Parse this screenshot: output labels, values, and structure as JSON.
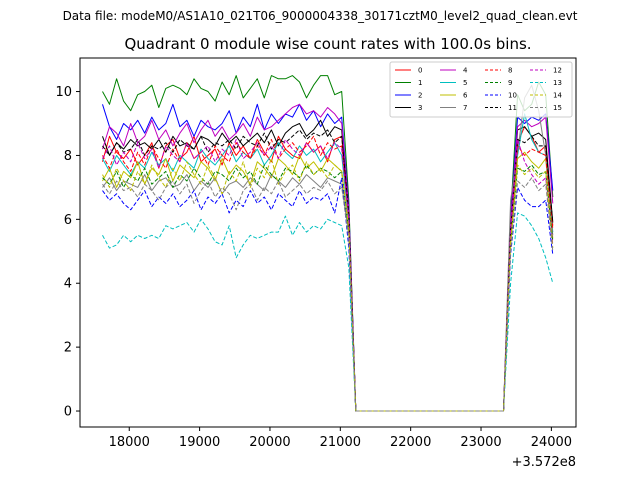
{
  "header_text": "Data file: modeM0/AS1A10_021T06_9000004338_30171cztM0_level2_quad_clean.evt",
  "chart_data": {
    "type": "line",
    "title": "Quadrant 0 module wise count rates with 100.0s bins.",
    "xlabel": "",
    "ylabel": "",
    "x_offset_label": "+3.572e8",
    "xlim": [
      17300,
      24350
    ],
    "ylim": [
      -0.5,
      11.05
    ],
    "xticks": [
      18000,
      19000,
      20000,
      21000,
      22000,
      23000,
      24000
    ],
    "yticks": [
      0,
      2,
      4,
      6,
      8,
      10
    ],
    "grid": false,
    "legend_position": "top-right",
    "x": [
      17620,
      17720,
      17820,
      17920,
      18020,
      18120,
      18220,
      18320,
      18420,
      18520,
      18620,
      18720,
      18820,
      18920,
      19020,
      19120,
      19220,
      19320,
      19420,
      19520,
      19620,
      19720,
      19820,
      19920,
      20020,
      20120,
      20220,
      20320,
      20420,
      20520,
      20620,
      20720,
      20820,
      20920,
      21020,
      21120,
      21220,
      21320,
      21420,
      21520,
      21620,
      21720,
      21820,
      21920,
      22020,
      22120,
      22220,
      22320,
      22420,
      22520,
      22620,
      22720,
      22820,
      22920,
      23020,
      23120,
      23220,
      23320,
      23420,
      23520,
      23620,
      23720,
      23820,
      23920,
      24020
    ],
    "series": [
      {
        "name": "0",
        "color": "#ff0000",
        "dash": "solid",
        "values": [
          7.8,
          8.6,
          8.1,
          7.9,
          8.2,
          7.7,
          8.0,
          8.4,
          7.6,
          8.3,
          8.5,
          7.9,
          8.1,
          8.6,
          7.8,
          8.0,
          8.2,
          7.7,
          8.4,
          8.0,
          8.3,
          7.9,
          8.5,
          8.1,
          7.8,
          8.6,
          8.2,
          8.0,
          7.9,
          8.4,
          8.1,
          8.3,
          7.8,
          8.5,
          8.6,
          6.2,
          0.0,
          0.0,
          0.0,
          0.0,
          0.0,
          0.0,
          0.0,
          0.0,
          0.0,
          0.0,
          0.0,
          0.0,
          0.0,
          0.0,
          0.0,
          0.0,
          0.0,
          0.0,
          0.0,
          0.0,
          0.0,
          0.0,
          5.5,
          8.4,
          8.9,
          8.6,
          8.1,
          8.3,
          5.8
        ]
      },
      {
        "name": "1",
        "color": "#008000",
        "dash": "solid",
        "values": [
          10.0,
          9.6,
          10.4,
          9.7,
          9.4,
          9.9,
          10.0,
          10.2,
          9.5,
          10.1,
          10.2,
          10.1,
          9.9,
          10.4,
          10.1,
          10.0,
          9.7,
          10.3,
          9.9,
          10.5,
          9.8,
          10.1,
          10.4,
          9.8,
          10.5,
          10.4,
          10.4,
          10.5,
          10.3,
          9.8,
          10.2,
          10.5,
          10.5,
          9.9,
          10.0,
          6.6,
          0.0,
          0.0,
          0.0,
          0.0,
          0.0,
          0.0,
          0.0,
          0.0,
          0.0,
          0.0,
          0.0,
          0.0,
          0.0,
          0.0,
          0.0,
          0.0,
          0.0,
          0.0,
          0.0,
          0.0,
          0.0,
          0.0,
          6.1,
          9.9,
          9.4,
          9.6,
          10.3,
          9.9,
          6.7
        ]
      },
      {
        "name": "2",
        "color": "#0000ff",
        "dash": "solid",
        "values": [
          9.6,
          8.9,
          8.5,
          9.0,
          8.8,
          9.1,
          8.7,
          9.2,
          8.8,
          9.0,
          9.6,
          8.9,
          9.1,
          8.6,
          9.1,
          8.9,
          8.8,
          9.0,
          9.4,
          8.7,
          9.2,
          8.9,
          9.6,
          8.8,
          9.3,
          9.0,
          9.3,
          9.2,
          9.6,
          9.1,
          9.4,
          8.9,
          9.3,
          9.0,
          9.2,
          6.4,
          0.0,
          0.0,
          0.0,
          0.0,
          0.0,
          0.0,
          0.0,
          0.0,
          0.0,
          0.0,
          0.0,
          0.0,
          0.0,
          0.0,
          0.0,
          0.0,
          0.0,
          0.0,
          0.0,
          0.0,
          0.0,
          0.0,
          6.0,
          9.2,
          9.0,
          9.2,
          9.1,
          9.3,
          6.9
        ]
      },
      {
        "name": "3",
        "color": "#000000",
        "dash": "solid",
        "values": [
          8.6,
          8.0,
          8.4,
          8.2,
          8.5,
          8.3,
          8.4,
          8.2,
          8.5,
          8.1,
          8.6,
          8.3,
          8.4,
          8.2,
          8.6,
          8.5,
          8.3,
          8.7,
          8.4,
          8.6,
          8.3,
          8.5,
          8.7,
          8.4,
          8.8,
          8.3,
          8.7,
          8.9,
          9.0,
          8.6,
          8.8,
          9.1,
          8.6,
          8.9,
          8.8,
          6.1,
          0.0,
          0.0,
          0.0,
          0.0,
          0.0,
          0.0,
          0.0,
          0.0,
          0.0,
          0.0,
          0.0,
          0.0,
          0.0,
          0.0,
          0.0,
          0.0,
          0.0,
          0.0,
          0.0,
          0.0,
          0.0,
          0.0,
          5.7,
          8.8,
          8.9,
          8.6,
          8.7,
          8.5,
          5.9
        ]
      },
      {
        "name": "4",
        "color": "#bf00bf",
        "dash": "solid",
        "values": [
          8.2,
          8.9,
          8.7,
          8.3,
          9.0,
          8.4,
          8.6,
          9.1,
          8.5,
          8.8,
          8.3,
          8.7,
          9.0,
          8.4,
          8.8,
          9.1,
          8.6,
          8.9,
          8.5,
          8.7,
          9.0,
          8.6,
          9.2,
          8.8,
          8.9,
          9.1,
          9.3,
          9.5,
          9.6,
          9.3,
          9.4,
          9.2,
          9.5,
          9.3,
          9.0,
          6.3,
          0.0,
          0.0,
          0.0,
          0.0,
          0.0,
          0.0,
          0.0,
          0.0,
          0.0,
          0.0,
          0.0,
          0.0,
          0.0,
          0.0,
          0.0,
          0.0,
          0.0,
          0.0,
          0.0,
          0.0,
          0.0,
          0.0,
          5.9,
          8.9,
          9.1,
          8.9,
          9.0,
          9.2,
          6.5
        ]
      },
      {
        "name": "5",
        "color": "#00bfbf",
        "dash": "solid",
        "values": [
          7.9,
          7.5,
          8.0,
          7.7,
          7.4,
          7.8,
          7.6,
          8.1,
          7.7,
          7.9,
          7.5,
          8.0,
          7.8,
          7.6,
          8.2,
          7.9,
          7.7,
          8.0,
          8.3,
          7.8,
          8.1,
          7.9,
          8.2,
          7.7,
          8.0,
          8.4,
          8.1,
          7.9,
          8.3,
          8.0,
          8.2,
          7.8,
          8.1,
          8.4,
          8.0,
          5.9,
          0.0,
          0.0,
          0.0,
          0.0,
          0.0,
          0.0,
          0.0,
          0.0,
          0.0,
          0.0,
          0.0,
          0.0,
          0.0,
          0.0,
          0.0,
          0.0,
          0.0,
          0.0,
          0.0,
          0.0,
          0.0,
          0.0,
          5.4,
          8.0,
          9.3,
          8.5,
          8.1,
          8.0,
          5.6
        ]
      },
      {
        "name": "6",
        "color": "#bfbf00",
        "dash": "solid",
        "values": [
          7.2,
          7.6,
          7.0,
          7.5,
          7.3,
          7.8,
          7.1,
          7.6,
          7.4,
          7.9,
          7.2,
          7.7,
          7.5,
          7.3,
          7.8,
          7.6,
          7.2,
          7.9,
          7.4,
          7.7,
          7.5,
          7.1,
          7.8,
          7.6,
          7.3,
          7.9,
          7.7,
          7.4,
          8.0,
          7.6,
          7.8,
          7.5,
          7.9,
          7.7,
          7.5,
          5.7,
          0.0,
          0.0,
          0.0,
          0.0,
          0.0,
          0.0,
          0.0,
          0.0,
          0.0,
          0.0,
          0.0,
          0.0,
          0.0,
          0.0,
          0.0,
          0.0,
          0.0,
          0.0,
          0.0,
          0.0,
          0.0,
          0.0,
          5.2,
          7.9,
          8.1,
          7.8,
          7.6,
          7.9,
          5.4
        ]
      },
      {
        "name": "7",
        "color": "#808080",
        "dash": "solid",
        "values": [
          7.0,
          7.3,
          6.9,
          7.2,
          7.1,
          7.0,
          7.4,
          6.9,
          7.2,
          7.3,
          7.0,
          7.1,
          7.4,
          6.9,
          7.2,
          7.0,
          7.3,
          6.8,
          7.1,
          7.2,
          7.0,
          7.3,
          7.1,
          6.9,
          7.4,
          7.2,
          7.0,
          7.3,
          7.1,
          7.4,
          7.2,
          7.0,
          7.3,
          7.2,
          7.1,
          5.5,
          0.0,
          0.0,
          0.0,
          0.0,
          0.0,
          0.0,
          0.0,
          0.0,
          0.0,
          0.0,
          0.0,
          0.0,
          0.0,
          0.0,
          0.0,
          0.0,
          0.0,
          0.0,
          0.0,
          0.0,
          0.0,
          0.0,
          6.6,
          8.1,
          9.8,
          10.2,
          9.4,
          8.0,
          5.5
        ]
      },
      {
        "name": "8",
        "color": "#ff0000",
        "dash": "dashed",
        "values": [
          8.0,
          7.6,
          8.2,
          7.8,
          7.5,
          8.1,
          7.7,
          8.3,
          7.9,
          7.6,
          8.2,
          7.8,
          8.4,
          7.9,
          8.1,
          7.7,
          8.3,
          8.0,
          7.8,
          8.4,
          8.1,
          7.9,
          8.3,
          8.0,
          8.5,
          7.9,
          8.2,
          8.4,
          8.1,
          8.3,
          8.6,
          8.0,
          8.4,
          8.2,
          8.3,
          6.0,
          0.0,
          0.0,
          0.0,
          0.0,
          0.0,
          0.0,
          0.0,
          0.0,
          0.0,
          0.0,
          0.0,
          0.0,
          0.0,
          0.0,
          0.0,
          0.0,
          0.0,
          0.0,
          0.0,
          0.0,
          0.0,
          0.0,
          5.5,
          8.3,
          8.0,
          8.2,
          8.1,
          8.0,
          5.7
        ]
      },
      {
        "name": "9",
        "color": "#008000",
        "dash": "dashed",
        "values": [
          7.3,
          7.1,
          7.5,
          7.0,
          7.4,
          7.2,
          7.6,
          7.1,
          7.3,
          7.5,
          7.0,
          7.4,
          7.2,
          7.6,
          7.3,
          7.1,
          7.5,
          7.4,
          7.2,
          7.6,
          7.3,
          7.5,
          7.1,
          7.7,
          7.4,
          7.2,
          7.6,
          7.5,
          7.3,
          7.7,
          7.4,
          7.6,
          7.5,
          7.3,
          7.5,
          5.6,
          0.0,
          0.0,
          0.0,
          0.0,
          0.0,
          0.0,
          0.0,
          0.0,
          0.0,
          0.0,
          0.0,
          0.0,
          0.0,
          0.0,
          0.0,
          0.0,
          0.0,
          0.0,
          0.0,
          0.0,
          0.0,
          0.0,
          5.3,
          7.6,
          7.5,
          7.7,
          7.4,
          7.5,
          5.3
        ]
      },
      {
        "name": "10",
        "color": "#0000ff",
        "dash": "dashed",
        "values": [
          6.9,
          6.6,
          6.8,
          6.5,
          6.3,
          6.6,
          6.9,
          6.4,
          6.7,
          6.5,
          6.8,
          6.4,
          6.6,
          6.9,
          6.3,
          6.7,
          6.5,
          6.8,
          6.2,
          6.6,
          6.4,
          6.9,
          6.5,
          6.7,
          6.3,
          6.8,
          6.6,
          6.4,
          6.9,
          6.5,
          6.7,
          6.6,
          6.8,
          6.2,
          7.3,
          5.1,
          0.0,
          0.0,
          0.0,
          0.0,
          0.0,
          0.0,
          0.0,
          0.0,
          0.0,
          0.0,
          0.0,
          0.0,
          0.0,
          0.0,
          0.0,
          0.0,
          0.0,
          0.0,
          0.0,
          0.0,
          0.0,
          0.0,
          4.9,
          7.0,
          6.6,
          6.4,
          6.4,
          6.6,
          4.9
        ]
      },
      {
        "name": "11",
        "color": "#000000",
        "dash": "dashed",
        "values": [
          8.3,
          8.0,
          8.4,
          8.1,
          8.2,
          8.5,
          8.0,
          8.3,
          8.2,
          8.4,
          8.1,
          8.5,
          8.3,
          8.2,
          8.6,
          8.1,
          8.4,
          8.3,
          8.5,
          8.2,
          8.6,
          8.4,
          8.3,
          8.7,
          8.2,
          8.5,
          8.4,
          8.6,
          8.8,
          8.5,
          8.7,
          8.6,
          8.8,
          8.4,
          8.6,
          6.2,
          0.0,
          0.0,
          0.0,
          0.0,
          0.0,
          0.0,
          0.0,
          0.0,
          0.0,
          0.0,
          0.0,
          0.0,
          0.0,
          0.0,
          0.0,
          0.0,
          0.0,
          0.0,
          0.0,
          0.0,
          0.0,
          0.0,
          5.7,
          8.5,
          8.4,
          8.6,
          8.3,
          8.3,
          5.9
        ]
      },
      {
        "name": "12",
        "color": "#bf00bf",
        "dash": "dashed",
        "values": [
          7.9,
          8.3,
          7.7,
          8.1,
          7.8,
          8.4,
          7.9,
          8.2,
          7.6,
          8.3,
          8.0,
          7.8,
          8.4,
          7.9,
          8.1,
          8.3,
          7.8,
          8.2,
          8.0,
          8.5,
          7.9,
          8.1,
          8.4,
          8.0,
          8.3,
          7.9,
          8.5,
          8.2,
          8.0,
          8.4,
          8.1,
          8.3,
          7.9,
          8.4,
          8.2,
          6.0,
          0.0,
          0.0,
          0.0,
          0.0,
          0.0,
          0.0,
          0.0,
          0.0,
          0.0,
          0.0,
          0.0,
          0.0,
          0.0,
          0.0,
          0.0,
          0.0,
          0.0,
          0.0,
          0.0,
          0.0,
          0.0,
          0.0,
          5.6,
          8.5,
          7.8,
          7.4,
          7.1,
          7.3,
          5.2
        ]
      },
      {
        "name": "13",
        "color": "#00bfbf",
        "dash": "dashed",
        "values": [
          5.5,
          5.1,
          5.2,
          5.5,
          5.3,
          5.5,
          5.4,
          5.5,
          5.4,
          5.8,
          5.7,
          5.8,
          5.9,
          5.6,
          6.0,
          5.7,
          5.3,
          5.2,
          5.8,
          4.8,
          5.2,
          5.5,
          5.4,
          5.5,
          5.6,
          5.6,
          6.1,
          5.5,
          5.9,
          5.6,
          5.8,
          5.7,
          6.0,
          5.9,
          5.8,
          4.5,
          0.0,
          0.0,
          0.0,
          0.0,
          0.0,
          0.0,
          0.0,
          0.0,
          0.0,
          0.0,
          0.0,
          0.0,
          0.0,
          0.0,
          0.0,
          0.0,
          0.0,
          0.0,
          0.0,
          0.0,
          0.0,
          0.0,
          4.0,
          6.2,
          6.1,
          5.8,
          5.4,
          4.8,
          4.0
        ]
      },
      {
        "name": "14",
        "color": "#bfbf00",
        "dash": "dashed",
        "values": [
          7.4,
          7.0,
          7.6,
          7.2,
          6.9,
          7.5,
          7.1,
          7.7,
          7.3,
          7.0,
          7.6,
          7.2,
          7.8,
          7.4,
          7.1,
          7.7,
          7.3,
          6.8,
          7.5,
          7.2,
          7.8,
          7.0,
          7.6,
          7.3,
          7.9,
          7.1,
          7.5,
          7.7,
          7.2,
          7.8,
          7.4,
          7.6,
          7.3,
          7.7,
          7.5,
          5.7,
          0.0,
          0.0,
          0.0,
          0.0,
          0.0,
          0.0,
          0.0,
          0.0,
          0.0,
          0.0,
          0.0,
          0.0,
          0.0,
          0.0,
          0.0,
          0.0,
          0.0,
          0.0,
          0.0,
          0.0,
          0.0,
          0.0,
          5.3,
          7.7,
          7.4,
          7.6,
          7.3,
          7.5,
          5.1
        ]
      },
      {
        "name": "15",
        "color": "#808080",
        "dash": "dashed",
        "values": [
          7.1,
          6.8,
          7.2,
          6.9,
          7.0,
          6.7,
          7.1,
          6.9,
          6.6,
          7.0,
          7.2,
          6.8,
          7.1,
          6.5,
          6.9,
          7.2,
          6.7,
          7.0,
          6.8,
          6.3,
          6.9,
          7.1,
          6.6,
          7.0,
          6.8,
          7.2,
          6.7,
          6.9,
          7.1,
          6.8,
          7.0,
          6.9,
          7.2,
          6.8,
          7.0,
          5.4,
          0.0,
          0.0,
          0.0,
          0.0,
          0.0,
          0.0,
          0.0,
          0.0,
          0.0,
          0.0,
          0.0,
          0.0,
          0.0,
          0.0,
          0.0,
          0.0,
          0.0,
          0.0,
          0.0,
          0.0,
          0.0,
          0.0,
          5.0,
          7.2,
          7.0,
          7.3,
          6.9,
          7.1,
          5.0
        ]
      }
    ]
  }
}
